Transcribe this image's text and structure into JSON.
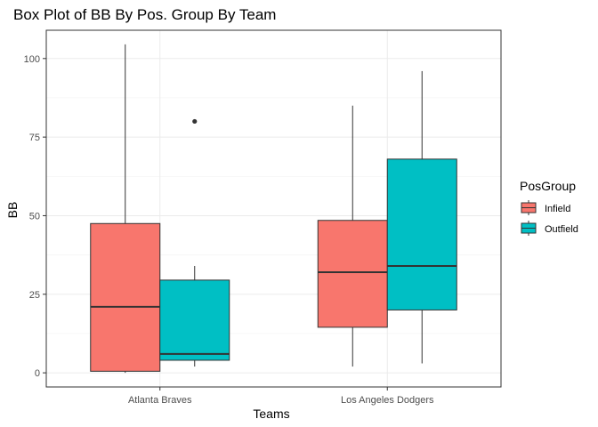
{
  "chart_data": {
    "type": "box",
    "title": "Box Plot of BB By Pos. Group By Team",
    "xlabel": "Teams",
    "ylabel": "BB",
    "categories": [
      "Atlanta Braves",
      "Los Angeles Dodgers"
    ],
    "ylim": [
      -4.5,
      109
    ],
    "yticks": [
      0,
      25,
      50,
      75,
      100
    ],
    "grid": true,
    "legend": {
      "title": "PosGroup",
      "position": "right"
    },
    "series": [
      {
        "name": "Infield",
        "color": "#F8766D",
        "boxes": [
          {
            "category": "Atlanta Braves",
            "min": 0,
            "q1": 0.5,
            "median": 21,
            "q3": 47.5,
            "max": 104.5,
            "outliers": []
          },
          {
            "category": "Los Angeles Dodgers",
            "min": 2,
            "q1": 14.5,
            "median": 32,
            "q3": 48.5,
            "max": 85,
            "outliers": []
          }
        ]
      },
      {
        "name": "Outfield",
        "color": "#00BFC4",
        "boxes": [
          {
            "category": "Atlanta Braves",
            "min": 2,
            "q1": 4,
            "median": 6,
            "q3": 29.5,
            "max": 34,
            "outliers": [
              80
            ]
          },
          {
            "category": "Los Angeles Dodgers",
            "min": 3,
            "q1": 20,
            "median": 34,
            "q3": 68,
            "max": 96,
            "outliers": []
          }
        ]
      }
    ]
  }
}
